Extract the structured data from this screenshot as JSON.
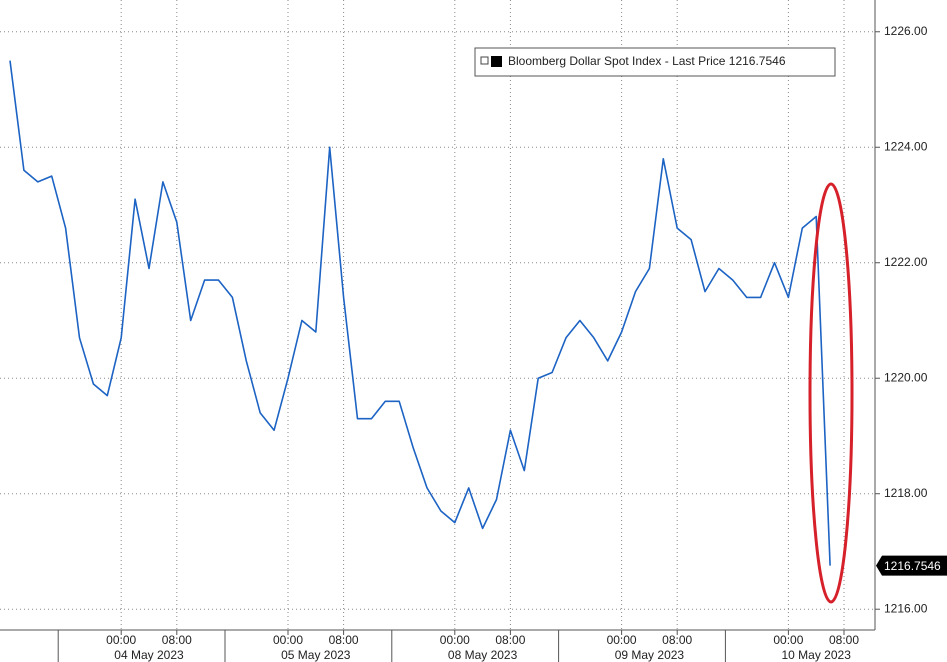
{
  "chart_data": {
    "type": "line",
    "x": [
      "03 May 2023 08:00",
      "03 May 2023 10:00",
      "03 May 2023 12:00",
      "03 May 2023 14:00",
      "03 May 2023 16:00",
      "03 May 2023 18:00",
      "03 May 2023 20:00",
      "03 May 2023 22:00",
      "04 May 2023 00:00",
      "04 May 2023 02:00",
      "04 May 2023 04:00",
      "04 May 2023 06:00",
      "04 May 2023 08:00",
      "04 May 2023 10:00",
      "04 May 2023 12:00",
      "04 May 2023 14:00",
      "04 May 2023 16:00",
      "04 May 2023 18:00",
      "04 May 2023 20:00",
      "04 May 2023 22:00",
      "05 May 2023 00:00",
      "05 May 2023 02:00",
      "05 May 2023 04:00",
      "05 May 2023 06:00",
      "05 May 2023 08:00",
      "05 May 2023 10:00",
      "05 May 2023 12:00",
      "05 May 2023 14:00",
      "05 May 2023 16:00",
      "05 May 2023 18:00",
      "05 May 2023 20:00",
      "05 May 2023 22:00",
      "08 May 2023 00:00",
      "08 May 2023 02:00",
      "08 May 2023 04:00",
      "08 May 2023 06:00",
      "08 May 2023 08:00",
      "08 May 2023 10:00",
      "08 May 2023 12:00",
      "08 May 2023 14:00",
      "08 May 2023 16:00",
      "08 May 2023 18:00",
      "08 May 2023 20:00",
      "08 May 2023 22:00",
      "09 May 2023 00:00",
      "09 May 2023 02:00",
      "09 May 2023 04:00",
      "09 May 2023 06:00",
      "09 May 2023 08:00",
      "09 May 2023 10:00",
      "09 May 2023 12:00",
      "09 May 2023 14:00",
      "09 May 2023 16:00",
      "09 May 2023 18:00",
      "09 May 2023 20:00",
      "09 May 2023 22:00",
      "10 May 2023 00:00",
      "10 May 2023 02:00",
      "10 May 2023 04:00",
      "10 May 2023 06:00"
    ],
    "series": [
      {
        "name": "Bloomberg Dollar Spot Index - Last Price",
        "color": "#1c63c4",
        "values": [
          1225.5,
          1223.6,
          1223.4,
          1223.5,
          1222.6,
          1220.7,
          1219.9,
          1219.7,
          1220.7,
          1223.1,
          1221.9,
          1223.4,
          1222.7,
          1221.0,
          1221.7,
          1221.7,
          1221.4,
          1220.3,
          1219.4,
          1219.1,
          1220.0,
          1221.0,
          1220.8,
          1224.0,
          1221.4,
          1219.3,
          1219.3,
          1219.6,
          1219.6,
          1218.8,
          1218.1,
          1217.7,
          1217.5,
          1218.1,
          1217.4,
          1217.9,
          1219.1,
          1218.4,
          1220.0,
          1220.1,
          1220.7,
          1221.0,
          1220.7,
          1220.3,
          1220.8,
          1221.5,
          1221.9,
          1223.8,
          1222.6,
          1222.4,
          1221.5,
          1221.9,
          1221.7,
          1221.4,
          1221.4,
          1222.0,
          1221.4,
          1222.6,
          1222.8,
          1216.7546
        ]
      }
    ],
    "ylim": [
      1215.64,
      1226.55
    ],
    "yticks": [
      {
        "value": 1216,
        "label": "1216.00"
      },
      {
        "value": 1218,
        "label": "1218.00"
      },
      {
        "value": 1220,
        "label": "1220.00"
      },
      {
        "value": 1222,
        "label": "1222.00"
      },
      {
        "value": 1224,
        "label": "1224.00"
      },
      {
        "value": 1226,
        "label": "1226.00"
      }
    ],
    "xticks": [
      {
        "value": "04 May 2023 00:00",
        "label": "00:00"
      },
      {
        "value": "04 May 2023 08:00",
        "label": "08:00"
      },
      {
        "value": "05 May 2023 00:00",
        "label": "00:00"
      },
      {
        "value": "05 May 2023 08:00",
        "label": "08:00"
      },
      {
        "value": "08 May 2023 00:00",
        "label": "00:00"
      },
      {
        "value": "08 May 2023 08:00",
        "label": "08:00"
      },
      {
        "value": "09 May 2023 00:00",
        "label": "00:00"
      },
      {
        "value": "09 May 2023 08:00",
        "label": "08:00"
      },
      {
        "value": "10 May 2023 00:00",
        "label": "00:00"
      },
      {
        "value": "10 May 2023 08:00",
        "label": "08:00"
      }
    ],
    "xtick_dates": [
      "04 May 2023",
      "05 May 2023",
      "08 May 2023",
      "09 May 2023",
      "10 May 2023"
    ],
    "grid": true
  }
}
